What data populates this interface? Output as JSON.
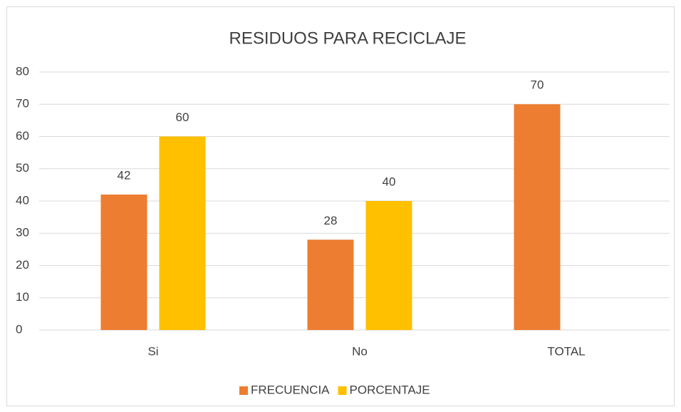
{
  "chart_data": {
    "type": "bar",
    "title": "RESIDUOS PARA RECICLAJE",
    "categories": [
      "Si",
      "No",
      "TOTAL"
    ],
    "series": [
      {
        "name": "FRECUENCIA",
        "color": "#ed7d31",
        "values": [
          42,
          28,
          70
        ]
      },
      {
        "name": "PORCENTAJE",
        "color": "#ffc000",
        "values": [
          60,
          40,
          null
        ]
      }
    ],
    "ylim": [
      0,
      80
    ],
    "yticks": [
      0,
      10,
      20,
      30,
      40,
      50,
      60,
      70,
      80
    ],
    "grid": true,
    "legend": "bottom"
  }
}
